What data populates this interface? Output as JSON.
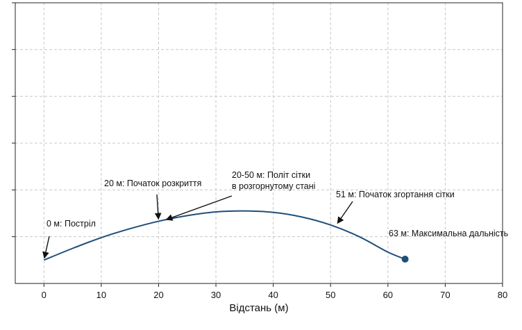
{
  "chart_data": {
    "type": "line",
    "title": "",
    "xlabel": "Відстань (м)",
    "ylabel": "",
    "xlim": [
      -5,
      80
    ],
    "ylim": [
      0,
      6
    ],
    "x_ticks": [
      0,
      10,
      20,
      30,
      40,
      50,
      60,
      70,
      80
    ],
    "y_ticks": [
      1,
      2,
      3,
      4,
      5,
      6
    ],
    "grid": true,
    "line_color": "#1f4e79",
    "marker_color": "#1f4e79",
    "series": [
      {
        "x": [
          0,
          5,
          10,
          15,
          20,
          25,
          30,
          35,
          40,
          45,
          50,
          55,
          60,
          63
        ],
        "values": [
          0.5,
          0.75,
          0.98,
          1.17,
          1.33,
          1.45,
          1.53,
          1.55,
          1.52,
          1.42,
          1.25,
          1.0,
          0.67,
          0.52
        ]
      }
    ],
    "endpoint": {
      "x": 63,
      "y": 0.52
    },
    "annotations": [
      {
        "lines": [
          "0 м: Постріл"
        ],
        "target": [
          0,
          0.5
        ]
      },
      {
        "lines": [
          "20 м: Початок розкриття"
        ],
        "target": [
          20,
          1.33
        ]
      },
      {
        "lines": [
          "20-50 м: Політ сітки",
          "в розгорнутому стані"
        ],
        "target": [
          21,
          1.35
        ]
      },
      {
        "lines": [
          "51 м: Початок згортання сітки"
        ],
        "target": [
          51,
          1.25
        ]
      },
      {
        "lines": [
          "63 м: Максимальна дальність"
        ],
        "target": [
          63,
          0.52
        ]
      }
    ]
  }
}
